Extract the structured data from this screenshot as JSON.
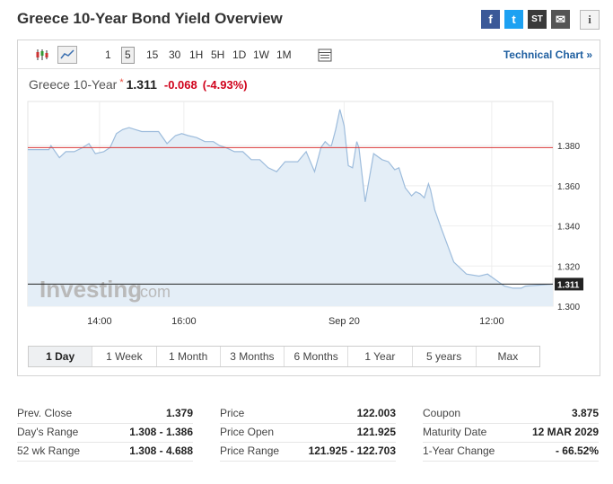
{
  "header": {
    "title": "Greece 10-Year Bond Yield Overview"
  },
  "social": {
    "facebook": "f",
    "twitter": "t",
    "stocktwits": "ST",
    "email": "✉",
    "info": "i"
  },
  "toolbar": {
    "intervals": [
      {
        "label": "1",
        "active": false
      },
      {
        "label": "5",
        "active": true
      },
      {
        "label": "15",
        "active": false
      },
      {
        "label": "30",
        "active": false
      },
      {
        "label": "1H",
        "active": false
      },
      {
        "label": "5H",
        "active": false
      },
      {
        "label": "1D",
        "active": false
      },
      {
        "label": "1W",
        "active": false
      },
      {
        "label": "1M",
        "active": false
      }
    ],
    "technical_chart": "Technical Chart »"
  },
  "quote": {
    "name": "Greece 10-Year",
    "star": "*",
    "price": "1.311",
    "change": "-0.068",
    "change_pct": "(-4.93%)"
  },
  "colors": {
    "area_fill": "#e4eef7",
    "line": "#9dbcdc",
    "prev_close_line": "#d93a3a",
    "down": "#d0021b",
    "link": "#1f5fa0"
  },
  "chart_data": {
    "type": "area",
    "y_ticks": [
      "1.380",
      "1.360",
      "1.340",
      "1.320",
      "1.300"
    ],
    "ylim": [
      1.3,
      1.402
    ],
    "x_ticks": [
      {
        "label": "14:00",
        "t": 14.0
      },
      {
        "label": "16:00",
        "t": 16.0
      },
      {
        "label": "Sep 20",
        "t": 19.8
      },
      {
        "label": "12:00",
        "t": 23.3
      }
    ],
    "xlim": [
      12.3,
      24.75
    ],
    "previous_close": 1.379,
    "last_value": 1.311,
    "last_label": "1.311",
    "watermark": "Investing",
    "watermark_suffix": ".com",
    "series": [
      {
        "x": [
          12.3,
          12.55,
          12.8,
          12.85,
          13.05,
          13.2,
          13.4,
          13.6,
          13.75,
          13.9,
          14.1,
          14.25,
          14.4,
          14.55,
          14.7,
          14.85,
          15.0,
          15.2,
          15.4,
          15.6,
          15.8,
          15.95,
          16.1,
          16.3,
          16.5,
          16.7,
          16.85,
          17.0,
          17.2,
          17.4,
          17.6,
          17.8,
          18.0,
          18.2,
          18.4,
          18.55,
          18.7,
          18.9,
          19.1,
          19.25,
          19.35,
          19.45,
          19.5,
          19.6,
          19.7,
          19.8,
          19.9,
          20.0,
          20.1,
          20.15,
          20.3,
          20.5,
          20.7,
          20.85,
          21.0,
          21.1,
          21.25,
          21.4,
          21.5,
          21.6,
          21.7,
          21.8,
          21.85,
          21.95,
          22.1,
          22.4,
          22.7,
          23.0,
          23.2,
          23.4,
          23.6,
          23.8,
          24.0,
          24.1,
          24.75
        ],
        "y": [
          1.378,
          1.378,
          1.378,
          1.38,
          1.374,
          1.377,
          1.377,
          1.379,
          1.381,
          1.376,
          1.377,
          1.379,
          1.386,
          1.388,
          1.389,
          1.388,
          1.387,
          1.387,
          1.387,
          1.381,
          1.385,
          1.386,
          1.385,
          1.384,
          1.382,
          1.382,
          1.38,
          1.379,
          1.377,
          1.377,
          1.373,
          1.373,
          1.369,
          1.367,
          1.372,
          1.372,
          1.372,
          1.377,
          1.367,
          1.379,
          1.382,
          1.38,
          1.38,
          1.388,
          1.398,
          1.39,
          1.37,
          1.369,
          1.382,
          1.379,
          1.352,
          1.376,
          1.373,
          1.372,
          1.368,
          1.369,
          1.359,
          1.355,
          1.357,
          1.356,
          1.354,
          1.361,
          1.358,
          1.348,
          1.339,
          1.322,
          1.316,
          1.315,
          1.316,
          1.313,
          1.31,
          1.309,
          1.309,
          1.31,
          1.311
        ]
      }
    ],
    "ranges": [
      {
        "label": "1 Day",
        "active": true
      },
      {
        "label": "1 Week",
        "active": false
      },
      {
        "label": "1 Month",
        "active": false
      },
      {
        "label": "3 Months",
        "active": false
      },
      {
        "label": "6 Months",
        "active": false
      },
      {
        "label": "1 Year",
        "active": false
      },
      {
        "label": "5 years",
        "active": false
      },
      {
        "label": "Max",
        "active": false
      }
    ]
  },
  "stats": [
    [
      {
        "label": "Prev. Close",
        "value": "1.379"
      },
      {
        "label": "Day's Range",
        "value": "1.308 - 1.386"
      },
      {
        "label": "52 wk Range",
        "value": "1.308 - 4.688"
      }
    ],
    [
      {
        "label": "Price",
        "value": "122.003"
      },
      {
        "label": "Price Open",
        "value": "121.925"
      },
      {
        "label": "Price Range",
        "value": "121.925 - 122.703"
      }
    ],
    [
      {
        "label": "Coupon",
        "value": "3.875"
      },
      {
        "label": "Maturity Date",
        "value": "12 MAR 2029"
      },
      {
        "label": "1-Year Change",
        "value": "- 66.52%"
      }
    ]
  ]
}
